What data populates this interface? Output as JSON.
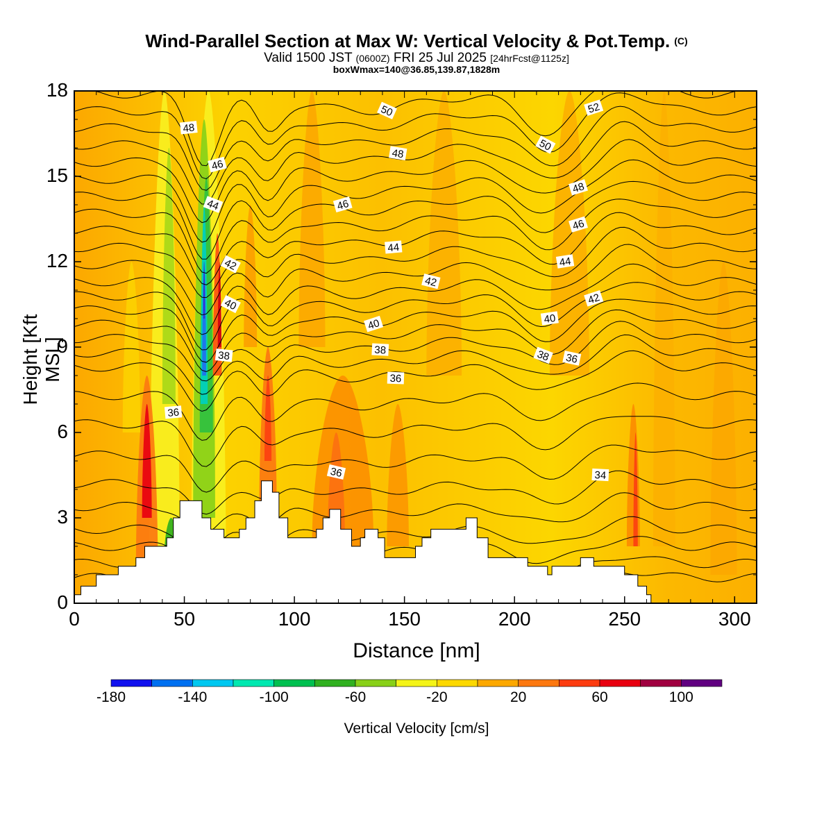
{
  "header": {
    "title": "Wind-Parallel Section at Max W: Vertical Velocity & Pot.Temp.",
    "title_mark": "(C)",
    "valid_a": "Valid 1500 JST",
    "valid_zulu": "(0600Z)",
    "valid_b": "FRI 25 Jul 2025",
    "forecast": "[24hrFcst@1125z]",
    "box_info": "boxWmax=140@36.85,139.87,1828m"
  },
  "chart_data": {
    "type": "heatmap",
    "xlabel": "Distance [nm]",
    "ylabel": "Height [Kft MSL]",
    "xlim": [
      0,
      310
    ],
    "ylim": [
      0,
      18
    ],
    "x_ticks": [
      "0",
      "50",
      "100",
      "150",
      "200",
      "250",
      "300"
    ],
    "y_ticks": [
      "0",
      "3",
      "6",
      "9",
      "12",
      "15",
      "18"
    ],
    "colorbar": {
      "label": "Vertical Velocity [cm/s]",
      "tick_labels": [
        "-180",
        "-140",
        "-100",
        "-60",
        "-20",
        "20",
        "60",
        "100"
      ],
      "colors": [
        "#1111ee",
        "#0070f0",
        "#00c8f0",
        "#00e8b0",
        "#00c050",
        "#30b020",
        "#88d018",
        "#f4f418",
        "#fcd800",
        "#fca800",
        "#fc7810",
        "#fc3c10",
        "#e80010",
        "#a00040",
        "#600080"
      ]
    },
    "theta_contour_labels": [
      {
        "value": "36",
        "x": 45,
        "y": 6.7
      },
      {
        "value": "38",
        "x": 68,
        "y": 8.7
      },
      {
        "value": "40",
        "x": 71,
        "y": 10.5
      },
      {
        "value": "42",
        "x": 71,
        "y": 11.9
      },
      {
        "value": "44",
        "x": 63,
        "y": 14.0
      },
      {
        "value": "46",
        "x": 65,
        "y": 15.4
      },
      {
        "value": "48",
        "x": 52,
        "y": 16.7
      },
      {
        "value": "36",
        "x": 119,
        "y": 4.6
      },
      {
        "value": "40",
        "x": 136,
        "y": 9.8
      },
      {
        "value": "38",
        "x": 139,
        "y": 8.9
      },
      {
        "value": "36",
        "x": 146,
        "y": 7.9
      },
      {
        "value": "44",
        "x": 145,
        "y": 12.5
      },
      {
        "value": "46",
        "x": 122,
        "y": 14.0
      },
      {
        "value": "48",
        "x": 147,
        "y": 15.8
      },
      {
        "value": "50",
        "x": 142,
        "y": 17.3
      },
      {
        "value": "42",
        "x": 162,
        "y": 11.3
      },
      {
        "value": "40",
        "x": 216,
        "y": 10.0
      },
      {
        "value": "38",
        "x": 213,
        "y": 8.7
      },
      {
        "value": "36",
        "x": 226,
        "y": 8.6
      },
      {
        "value": "44",
        "x": 223,
        "y": 12.0
      },
      {
        "value": "42",
        "x": 236,
        "y": 10.7
      },
      {
        "value": "46",
        "x": 229,
        "y": 13.3
      },
      {
        "value": "48",
        "x": 229,
        "y": 14.6
      },
      {
        "value": "50",
        "x": 214,
        "y": 16.1
      },
      {
        "value": "52",
        "x": 236,
        "y": 17.4
      },
      {
        "value": "34",
        "x": 239,
        "y": 4.5
      }
    ],
    "terrain_nm_kft": [
      [
        0,
        0.3
      ],
      [
        3,
        0.3
      ],
      [
        3,
        0.6
      ],
      [
        10,
        0.6
      ],
      [
        10,
        1.0
      ],
      [
        20,
        1.0
      ],
      [
        20,
        1.3
      ],
      [
        28,
        1.3
      ],
      [
        28,
        1.6
      ],
      [
        32,
        1.6
      ],
      [
        32,
        2.0
      ],
      [
        42,
        2.0
      ],
      [
        42,
        2.3
      ],
      [
        45,
        2.3
      ],
      [
        45,
        3.0
      ],
      [
        48,
        3.0
      ],
      [
        48,
        3.6
      ],
      [
        58,
        3.6
      ],
      [
        58,
        3.0
      ],
      [
        62,
        3.0
      ],
      [
        62,
        2.6
      ],
      [
        68,
        2.6
      ],
      [
        68,
        2.3
      ],
      [
        75,
        2.3
      ],
      [
        75,
        2.6
      ],
      [
        78,
        2.6
      ],
      [
        78,
        3.0
      ],
      [
        82,
        3.0
      ],
      [
        82,
        3.6
      ],
      [
        85,
        3.6
      ],
      [
        85,
        4.3
      ],
      [
        90,
        4.3
      ],
      [
        90,
        3.9
      ],
      [
        93,
        3.9
      ],
      [
        93,
        3.0
      ],
      [
        97,
        3.0
      ],
      [
        97,
        2.3
      ],
      [
        110,
        2.3
      ],
      [
        110,
        2.6
      ],
      [
        113,
        2.6
      ],
      [
        113,
        3.0
      ],
      [
        116,
        3.0
      ],
      [
        116,
        3.3
      ],
      [
        121,
        3.3
      ],
      [
        121,
        2.6
      ],
      [
        126,
        2.6
      ],
      [
        126,
        2.0
      ],
      [
        130,
        2.0
      ],
      [
        130,
        2.3
      ],
      [
        132,
        2.3
      ],
      [
        132,
        2.6
      ],
      [
        138,
        2.6
      ],
      [
        138,
        2.3
      ],
      [
        141,
        2.3
      ],
      [
        141,
        1.6
      ],
      [
        155,
        1.6
      ],
      [
        155,
        2.0
      ],
      [
        158,
        2.0
      ],
      [
        158,
        2.3
      ],
      [
        162,
        2.3
      ],
      [
        162,
        2.6
      ],
      [
        178,
        2.6
      ],
      [
        178,
        3.0
      ],
      [
        183,
        3.0
      ],
      [
        183,
        2.3
      ],
      [
        188,
        2.3
      ],
      [
        188,
        1.6
      ],
      [
        206,
        1.6
      ],
      [
        206,
        1.3
      ],
      [
        215,
        1.3
      ],
      [
        215,
        1.0
      ],
      [
        217,
        1.0
      ],
      [
        217,
        1.3
      ],
      [
        230,
        1.3
      ],
      [
        230,
        1.6
      ],
      [
        236,
        1.6
      ],
      [
        236,
        1.3
      ],
      [
        250,
        1.3
      ],
      [
        250,
        1.0
      ],
      [
        256,
        1.0
      ],
      [
        256,
        0.6
      ],
      [
        260,
        0.6
      ],
      [
        260,
        0.3
      ],
      [
        262,
        0.3
      ],
      [
        262,
        0
      ],
      [
        310,
        0
      ]
    ]
  }
}
